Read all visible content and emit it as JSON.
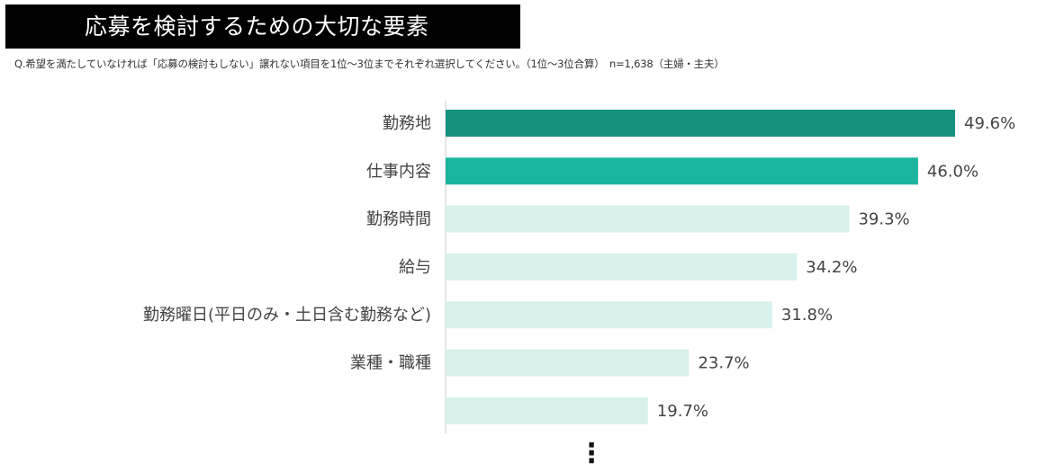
{
  "title": "応募を検討するための大切な要素",
  "question": "Q.希望を満たしていなければ「応募の検討もしない」譲れない項目を1位〜3位までそれぞれ選択してください。（1位〜3位合算）　n=1,638（主婦・主夫）",
  "chart_data": {
    "type": "bar",
    "orientation": "horizontal",
    "categories": [
      "勤務地",
      "仕事内容",
      "勤務時間",
      "給与",
      "勤務曜日(平日のみ・土日含む勤務など)",
      "業種・職種",
      ""
    ],
    "values": [
      49.6,
      46.0,
      39.3,
      34.2,
      31.8,
      23.7,
      19.7
    ],
    "value_labels": [
      "49.6%",
      "46.0%",
      "39.3%",
      "34.2%",
      "31.8%",
      "23.7%",
      "19.7%"
    ],
    "bar_colors": [
      "#16907f",
      "#1bb59f",
      "#d8f1ec",
      "#d8f1ec",
      "#d8f1ec",
      "#d8f1ec",
      "#d8f1ec"
    ],
    "continuation_marker": "⋮",
    "xlim": [
      0,
      50
    ],
    "grid": false,
    "legend": "none"
  }
}
